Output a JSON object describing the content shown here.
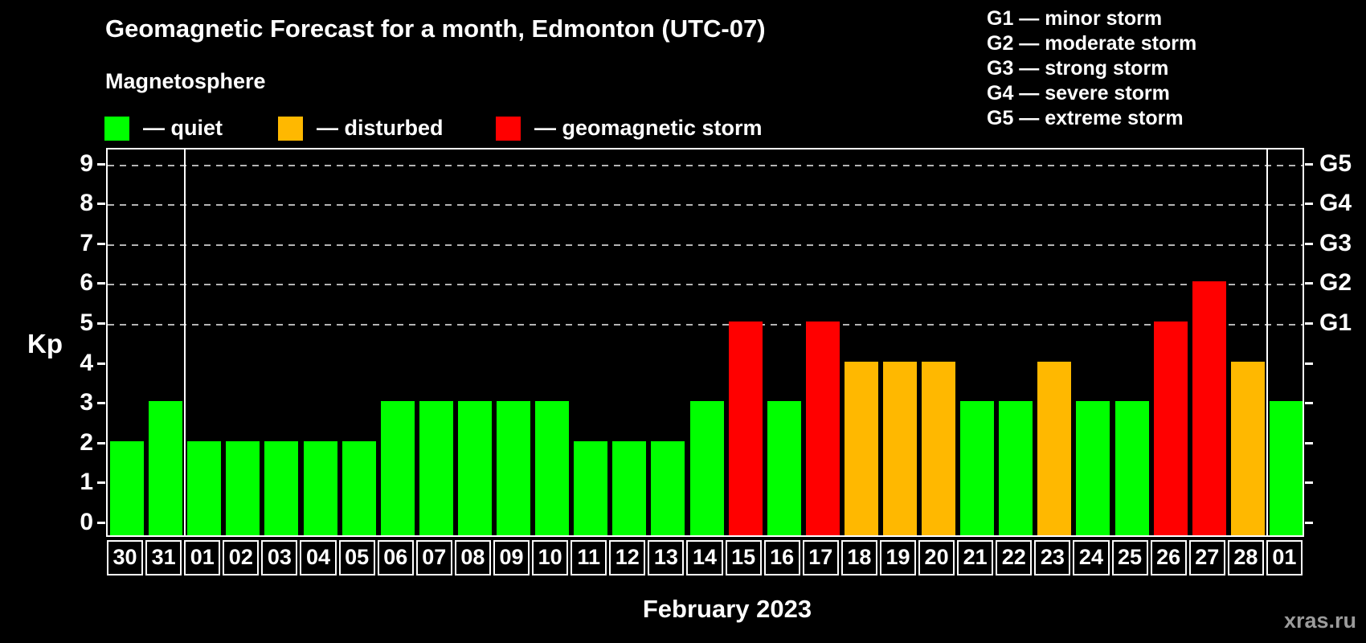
{
  "header": {
    "title": "Geomagnetic Forecast for a month, Edmonton (UTC-07)",
    "subtitle": "Magnetosphere"
  },
  "magnetosphere_legend": {
    "items": [
      {
        "name": "quiet",
        "swatch_color": "#00ff00",
        "label": "— quiet"
      },
      {
        "name": "disturbed",
        "swatch_color": "#ffb800",
        "label": "— disturbed"
      },
      {
        "name": "storm",
        "swatch_color": "#ff0000",
        "label": "— geomagnetic storm"
      }
    ]
  },
  "g_scale_legend": {
    "items": [
      "G1 — minor storm",
      "G2 — moderate storm",
      "G3 — strong storm",
      "G4 — severe storm",
      "G5 — extreme storm"
    ]
  },
  "chart_data": {
    "type": "bar",
    "title": "Geomagnetic Forecast for a month, Edmonton (UTC-07)",
    "ylabel": "Kp",
    "xlabel": "February 2023",
    "ylim": [
      0,
      9
    ],
    "yticks": [
      0,
      1,
      2,
      3,
      4,
      5,
      6,
      7,
      8,
      9
    ],
    "gridlines_at": [
      5,
      6,
      7,
      8,
      9
    ],
    "grid_style": "dashed",
    "legend_position": "top",
    "right_axis_labels": [
      {
        "kp": 5,
        "label": "G1"
      },
      {
        "kp": 6,
        "label": "G2"
      },
      {
        "kp": 7,
        "label": "G3"
      },
      {
        "kp": 8,
        "label": "G4"
      },
      {
        "kp": 9,
        "label": "G5"
      }
    ],
    "categories": [
      "30",
      "31",
      "01",
      "02",
      "03",
      "04",
      "05",
      "06",
      "07",
      "08",
      "09",
      "10",
      "11",
      "12",
      "13",
      "14",
      "15",
      "16",
      "17",
      "18",
      "19",
      "20",
      "21",
      "22",
      "23",
      "24",
      "25",
      "26",
      "27",
      "28",
      "01"
    ],
    "values": [
      2,
      3,
      2,
      2,
      2,
      2,
      2,
      3,
      3,
      3,
      3,
      3,
      2,
      2,
      2,
      3,
      5,
      3,
      5,
      4,
      4,
      4,
      3,
      3,
      4,
      3,
      3,
      5,
      6,
      4,
      3
    ],
    "statuses": [
      "quiet",
      "quiet",
      "quiet",
      "quiet",
      "quiet",
      "quiet",
      "quiet",
      "quiet",
      "quiet",
      "quiet",
      "quiet",
      "quiet",
      "quiet",
      "quiet",
      "quiet",
      "quiet",
      "storm",
      "quiet",
      "storm",
      "disturbed",
      "disturbed",
      "disturbed",
      "quiet",
      "quiet",
      "disturbed",
      "quiet",
      "quiet",
      "storm",
      "storm",
      "disturbed",
      "quiet"
    ],
    "colors": {
      "quiet": "#00ff00",
      "disturbed": "#ffb800",
      "storm": "#ff0000"
    },
    "month_boundaries_before_index": [
      2,
      30
    ]
  },
  "footer": {
    "watermark": "xras.ru"
  }
}
